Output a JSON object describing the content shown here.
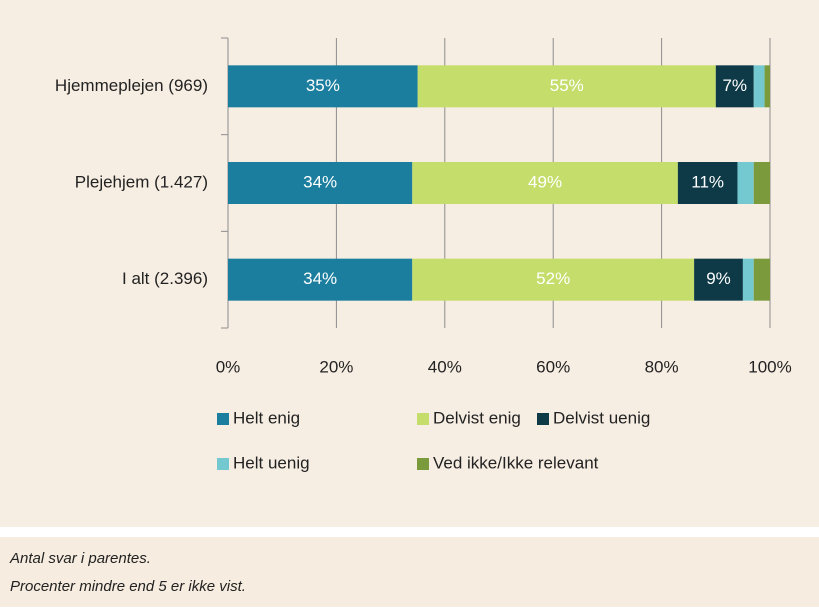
{
  "chart_data": {
    "type": "stacked-barh",
    "categories": [
      "Hjemmeplejen (969)",
      "Plejehjem (1.427)",
      "I alt (2.396)"
    ],
    "series": [
      {
        "name": "Helt enig",
        "color": "#1b7e9e",
        "values": [
          35,
          34,
          34
        ],
        "value_labels": [
          "35%",
          "34%",
          "34%"
        ]
      },
      {
        "name": "Delvist enig",
        "color": "#c5dd6b",
        "values": [
          55,
          49,
          52
        ],
        "value_labels": [
          "55%",
          "49%",
          "52%"
        ]
      },
      {
        "name": "Delvist uenig",
        "color": "#0e3a48",
        "values": [
          7,
          11,
          9
        ],
        "value_labels": [
          "7%",
          "11%",
          "9%"
        ]
      },
      {
        "name": "Helt uenig",
        "color": "#74c9d1",
        "values": [
          2,
          3,
          2
        ],
        "value_labels": [
          null,
          null,
          null
        ]
      },
      {
        "name": "Ved ikke/Ikke relevant",
        "color": "#7b9a3c",
        "values": [
          1,
          3,
          3
        ],
        "value_labels": [
          null,
          null,
          null
        ]
      }
    ],
    "xlim": [
      0,
      100
    ],
    "xticks": [
      {
        "value": 0,
        "label": "0%"
      },
      {
        "value": 20,
        "label": "20%"
      },
      {
        "value": 40,
        "label": "40%"
      },
      {
        "value": 60,
        "label": "60%"
      },
      {
        "value": 80,
        "label": "80%"
      },
      {
        "value": 100,
        "label": "100%"
      }
    ],
    "grid": true,
    "legend": "bottom",
    "notes": [
      "Antal svar i parentes.",
      "Procenter mindre end 5 er ikke vist."
    ]
  }
}
